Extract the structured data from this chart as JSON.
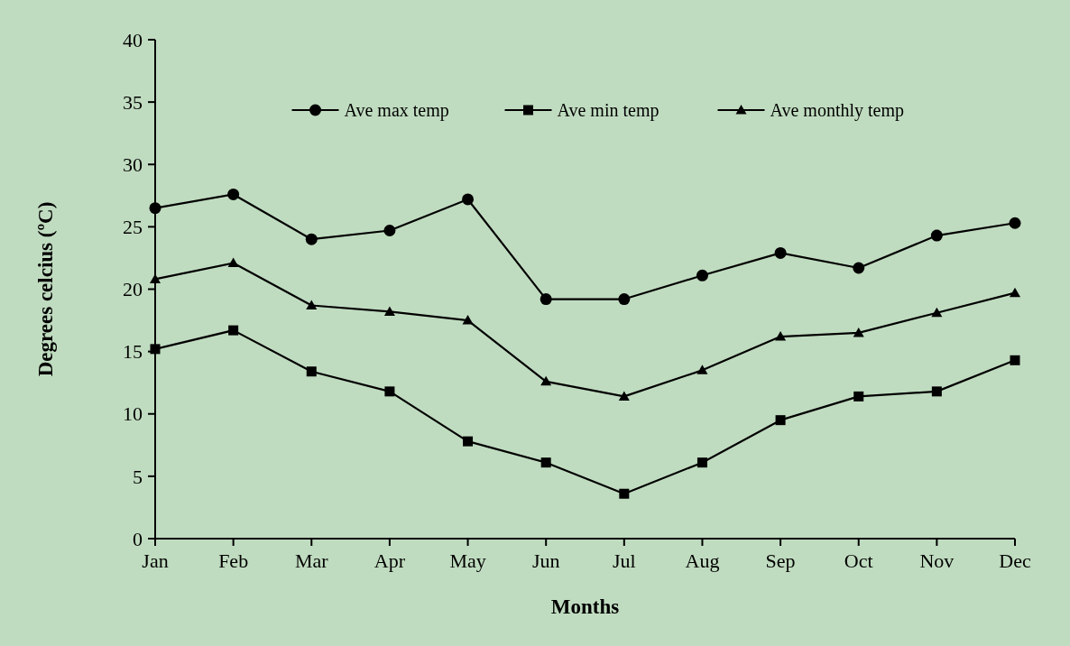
{
  "chart_data": {
    "type": "line",
    "xlabel": "Months",
    "ylabel": "Degrees celcius (ºC)",
    "categories": [
      "Jan",
      "Feb",
      "Mar",
      "Apr",
      "May",
      "Jun",
      "Jul",
      "Aug",
      "Sep",
      "Oct",
      "Nov",
      "Dec"
    ],
    "series": [
      {
        "name": "Ave max temp",
        "color": "#000000",
        "marker": "circle",
        "values": [
          26.5,
          27.6,
          24.0,
          24.7,
          27.2,
          19.2,
          19.2,
          21.1,
          22.9,
          21.7,
          24.3,
          25.3
        ]
      },
      {
        "name": "Ave min temp",
        "color": "#000000",
        "marker": "square",
        "values": [
          15.2,
          16.7,
          13.4,
          11.8,
          7.8,
          6.1,
          3.6,
          6.1,
          9.5,
          11.4,
          11.8,
          14.3
        ]
      },
      {
        "name": "Ave monthly temp",
        "color": "#000000",
        "marker": "triangle",
        "values": [
          20.8,
          22.1,
          18.7,
          18.2,
          17.5,
          12.6,
          11.4,
          13.5,
          16.2,
          16.5,
          18.1,
          19.7
        ]
      }
    ],
    "ylim": [
      0,
      40
    ],
    "yticks": [
      0,
      5,
      10,
      15,
      20,
      25,
      30,
      35,
      40
    ],
    "grid": false,
    "legend": "top"
  }
}
